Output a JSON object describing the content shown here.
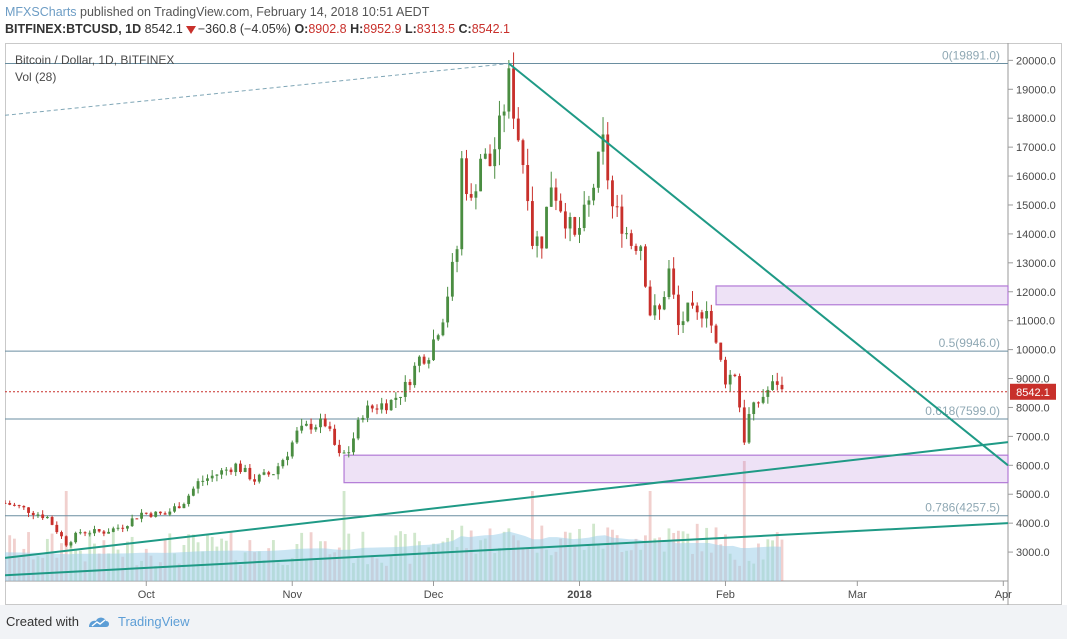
{
  "header": {
    "author": "MFXSCharts",
    "published": "published on TradingView.com, February 14, 2018 10:51 AEDT",
    "symbol": "BITFINEX:BTCUSD, 1D",
    "last": "8542.1",
    "change": "−360.8 (−4.05%)",
    "o_label": "O:",
    "o": "8902.8",
    "h_label": "H:",
    "h": "8952.9",
    "l_label": "L:",
    "l": "8313.5",
    "c_label": "C:",
    "c": "8542.1"
  },
  "footer": {
    "created": "Created with",
    "brand": "TradingView"
  },
  "colors": {
    "up": "#4a8d41",
    "down": "#c8302b",
    "teal": "#1f9a86",
    "zone": "#b27ad6",
    "volume": "#9fd0ea",
    "grid": "#6a8ea0"
  },
  "chart_data": {
    "type": "candlestick",
    "title": "Bitcoin / Dollar, 1D, BITFINEX",
    "indicator": "Vol (28)",
    "ylim": [
      2000,
      20600
    ],
    "y_ticks": [
      "20000.0",
      "19000.0",
      "18000.0",
      "17000.0",
      "16000.0",
      "15000.0",
      "14000.0",
      "13000.0",
      "12000.0",
      "11000.0",
      "10000.0",
      "9000.0",
      "8000.0",
      "7000.0",
      "6000.0",
      "5000.0",
      "4000.0",
      "3000.0"
    ],
    "x_ticks": [
      "Oct",
      "Nov",
      "Dec",
      "2018",
      "Feb",
      "Mar",
      "Apr"
    ],
    "x_range": [
      "2017-09-01",
      "2018-04-02"
    ],
    "last_price": 8542.1,
    "fibonacci": [
      {
        "label": "0(19891.0)",
        "value": 19891.0
      },
      {
        "label": "0.5(9946.0)",
        "value": 9946.0
      },
      {
        "label": "0.618(7599.0)",
        "value": 7599.0
      },
      {
        "label": "0.786(4257.5)",
        "value": 4257.5
      }
    ],
    "zones": [
      {
        "from": "2018-01-30",
        "to": "2018-04-02",
        "low": 11550,
        "high": 12200
      },
      {
        "from": "2017-11-12",
        "to": "2018-04-02",
        "low": 5400,
        "high": 6350
      }
    ],
    "trendlines": [
      {
        "from": [
          "2017-12-17",
          19891
        ],
        "to": [
          "2018-04-02",
          6000
        ],
        "style": "solid"
      },
      {
        "from": [
          "2017-09-01",
          2800
        ],
        "to": [
          "2018-04-02",
          6800
        ],
        "style": "solid"
      },
      {
        "from": [
          "2017-09-01",
          2200
        ],
        "to": [
          "2018-04-02",
          4000
        ],
        "style": "solid"
      },
      {
        "from": [
          "2017-09-01",
          18100
        ],
        "to": [
          "2017-12-17",
          19891
        ],
        "style": "dashed"
      }
    ],
    "close_series": [
      [
        "2017-09-01",
        4700
      ],
      [
        "2017-09-05",
        4500
      ],
      [
        "2017-09-10",
        4200
      ],
      [
        "2017-09-14",
        3300
      ],
      [
        "2017-09-17",
        3700
      ],
      [
        "2017-09-22",
        3700
      ],
      [
        "2017-09-26",
        3900
      ],
      [
        "2017-09-30",
        4350
      ],
      [
        "2017-10-05",
        4300
      ],
      [
        "2017-10-09",
        4750
      ],
      [
        "2017-10-12",
        5400
      ],
      [
        "2017-10-16",
        5700
      ],
      [
        "2017-10-20",
        6000
      ],
      [
        "2017-10-24",
        5500
      ],
      [
        "2017-10-28",
        5750
      ],
      [
        "2017-10-31",
        6450
      ],
      [
        "2017-11-02",
        7100
      ],
      [
        "2017-11-05",
        7400
      ],
      [
        "2017-11-08",
        7450
      ],
      [
        "2017-11-11",
        6300
      ],
      [
        "2017-11-13",
        6500
      ],
      [
        "2017-11-16",
        7850
      ],
      [
        "2017-11-19",
        8050
      ],
      [
        "2017-11-22",
        8200
      ],
      [
        "2017-11-25",
        8700
      ],
      [
        "2017-11-28",
        9700
      ],
      [
        "2017-11-30",
        9900
      ],
      [
        "2017-12-03",
        11200
      ],
      [
        "2017-12-06",
        13500
      ],
      [
        "2017-12-07",
        16500
      ],
      [
        "2017-12-09",
        15000
      ],
      [
        "2017-12-11",
        16700
      ],
      [
        "2017-12-13",
        16400
      ],
      [
        "2017-12-15",
        17600
      ],
      [
        "2017-12-17",
        19300
      ],
      [
        "2017-12-19",
        17400
      ],
      [
        "2017-12-21",
        15600
      ],
      [
        "2017-12-22",
        13800
      ],
      [
        "2017-12-24",
        13800
      ],
      [
        "2017-12-26",
        15800
      ],
      [
        "2017-12-29",
        14600
      ],
      [
        "2017-12-31",
        13800
      ],
      [
        "2018-01-03",
        15000
      ],
      [
        "2018-01-06",
        17100
      ],
      [
        "2018-01-08",
        14900
      ],
      [
        "2018-01-10",
        14400
      ],
      [
        "2018-01-12",
        13700
      ],
      [
        "2018-01-14",
        13700
      ],
      [
        "2018-01-16",
        11300
      ],
      [
        "2018-01-18",
        11300
      ],
      [
        "2018-01-20",
        12700
      ],
      [
        "2018-01-22",
        10800
      ],
      [
        "2018-01-24",
        11300
      ],
      [
        "2018-01-26",
        11100
      ],
      [
        "2018-01-28",
        11600
      ],
      [
        "2018-01-30",
        10100
      ],
      [
        "2018-02-01",
        9000
      ],
      [
        "2018-02-03",
        9200
      ],
      [
        "2018-02-05",
        6900
      ],
      [
        "2018-02-06",
        7700
      ],
      [
        "2018-02-08",
        8200
      ],
      [
        "2018-02-10",
        8600
      ],
      [
        "2018-02-12",
        8900
      ],
      [
        "2018-02-13",
        8542
      ]
    ],
    "volume_peaks": [
      {
        "date": "2017-09-14",
        "value": "high"
      },
      {
        "date": "2017-11-12",
        "value": "high"
      },
      {
        "date": "2017-12-22",
        "value": "high"
      },
      {
        "date": "2018-01-16",
        "value": "high"
      },
      {
        "date": "2018-02-05",
        "value": "highest"
      }
    ]
  }
}
